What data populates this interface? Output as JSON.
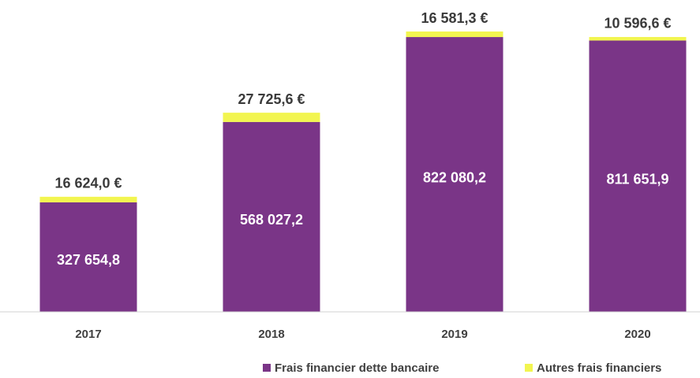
{
  "chart_data": {
    "type": "stacked_bar",
    "categories": [
      "2017",
      "2018",
      "2019",
      "2020"
    ],
    "series": [
      {
        "name": "Frais financier dette bancaire",
        "color": "#7a3587",
        "values": [
          327654.8,
          568027.2,
          822080.2,
          811651.9
        ],
        "value_labels": [
          "327 654,8",
          "568 027,2",
          "822 080,2",
          "811 651,9"
        ]
      },
      {
        "name": "Autres frais financiers",
        "color": "#f2f550",
        "values": [
          16624.0,
          27725.6,
          16581.3,
          10596.6
        ],
        "value_labels": [
          "16 624,0 €",
          "27 725,6 €",
          "16 581,3 €",
          "10 596,6 €"
        ]
      }
    ],
    "legend": "bottom-right"
  }
}
